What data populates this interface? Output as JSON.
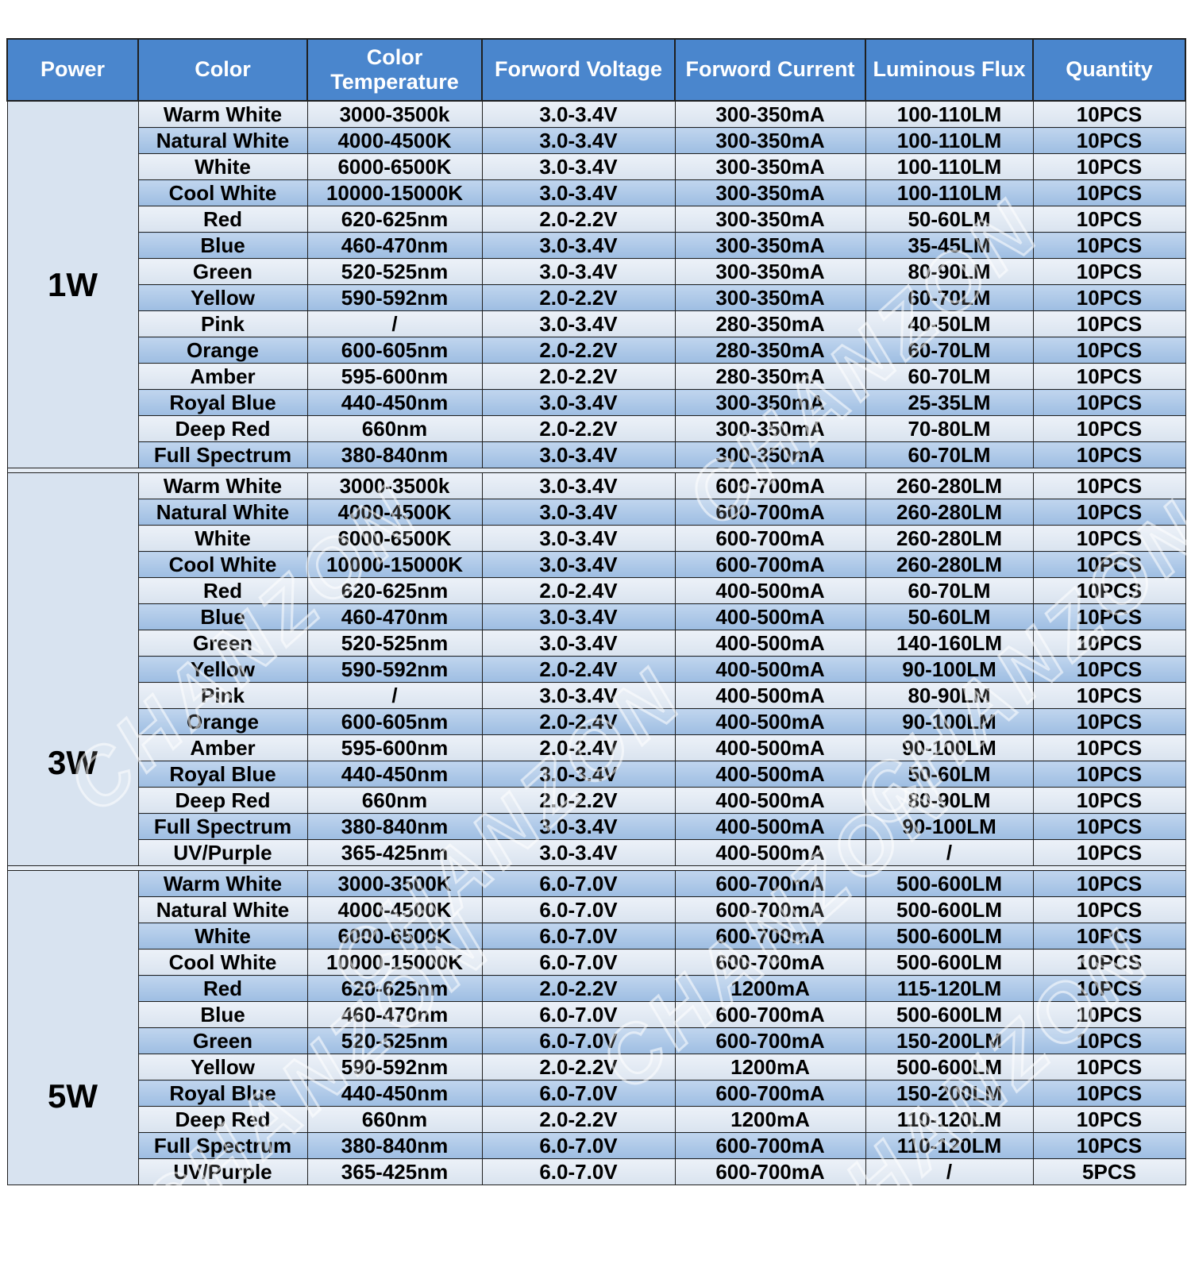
{
  "watermark": {
    "text": "CHANZON"
  },
  "colors": {
    "header_bg": "#4a86cd",
    "header_text": "#ffffff",
    "row_light": "#dce6f2",
    "row_blue": "#a3c2e5",
    "power_bg": "#d8e3f0",
    "border": "#1f1f1f",
    "canvas": "#ffffff"
  },
  "chart_data": {
    "type": "table",
    "columns": [
      "Power",
      "Color",
      "Color Temperature",
      "Forword Voltage",
      "Forword Current",
      "Luminous Flux",
      "Quantity"
    ],
    "sections": [
      {
        "power": "1W",
        "rows": [
          [
            "Warm White",
            "3000-3500k",
            "3.0-3.4V",
            "300-350mA",
            "100-110LM",
            "10PCS"
          ],
          [
            "Natural White",
            "4000-4500K",
            "3.0-3.4V",
            "300-350mA",
            "100-110LM",
            "10PCS"
          ],
          [
            "White",
            "6000-6500K",
            "3.0-3.4V",
            "300-350mA",
            "100-110LM",
            "10PCS"
          ],
          [
            "Cool White",
            "10000-15000K",
            "3.0-3.4V",
            "300-350mA",
            "100-110LM",
            "10PCS"
          ],
          [
            "Red",
            "620-625nm",
            "2.0-2.2V",
            "300-350mA",
            "50-60LM",
            "10PCS"
          ],
          [
            "Blue",
            "460-470nm",
            "3.0-3.4V",
            "300-350mA",
            "35-45LM",
            "10PCS"
          ],
          [
            "Green",
            "520-525nm",
            "3.0-3.4V",
            "300-350mA",
            "80-90LM",
            "10PCS"
          ],
          [
            "Yellow",
            "590-592nm",
            "2.0-2.2V",
            "300-350mA",
            "60-70LM",
            "10PCS"
          ],
          [
            "Pink",
            "/",
            "3.0-3.4V",
            "280-350mA",
            "40-50LM",
            "10PCS"
          ],
          [
            "Orange",
            "600-605nm",
            "2.0-2.2V",
            "280-350mA",
            "60-70LM",
            "10PCS"
          ],
          [
            "Amber",
            "595-600nm",
            "2.0-2.2V",
            "280-350mA",
            "60-70LM",
            "10PCS"
          ],
          [
            "Royal Blue",
            "440-450nm",
            "3.0-3.4V",
            "300-350mA",
            "25-35LM",
            "10PCS"
          ],
          [
            "Deep Red",
            "660nm",
            "2.0-2.2V",
            "300-350mA",
            "70-80LM",
            "10PCS"
          ],
          [
            "Full Spectrum",
            "380-840nm",
            "3.0-3.4V",
            "300-350mA",
            "60-70LM",
            "10PCS"
          ]
        ]
      },
      {
        "power": "3W",
        "rows": [
          [
            "Warm White",
            "3000-3500k",
            "3.0-3.4V",
            "600-700mA",
            "260-280LM",
            "10PCS"
          ],
          [
            "Natural White",
            "4000-4500K",
            "3.0-3.4V",
            "600-700mA",
            "260-280LM",
            "10PCS"
          ],
          [
            "White",
            "6000-6500K",
            "3.0-3.4V",
            "600-700mA",
            "260-280LM",
            "10PCS"
          ],
          [
            "Cool White",
            "10000-15000K",
            "3.0-3.4V",
            "600-700mA",
            "260-280LM",
            "10PCS"
          ],
          [
            "Red",
            "620-625nm",
            "2.0-2.4V",
            "400-500mA",
            "60-70LM",
            "10PCS"
          ],
          [
            "Blue",
            "460-470nm",
            "3.0-3.4V",
            "400-500mA",
            "50-60LM",
            "10PCS"
          ],
          [
            "Green",
            "520-525nm",
            "3.0-3.4V",
            "400-500mA",
            "140-160LM",
            "10PCS"
          ],
          [
            "Yellow",
            "590-592nm",
            "2.0-2.4V",
            "400-500mA",
            "90-100LM",
            "10PCS"
          ],
          [
            "Pink",
            "/",
            "3.0-3.4V",
            "400-500mA",
            "80-90LM",
            "10PCS"
          ],
          [
            "Orange",
            "600-605nm",
            "2.0-2.4V",
            "400-500mA",
            "90-100LM",
            "10PCS"
          ],
          [
            "Amber",
            "595-600nm",
            "2.0-2.4V",
            "400-500mA",
            "90-100LM",
            "10PCS"
          ],
          [
            "Royal Blue",
            "440-450nm",
            "3.0-3.4V",
            "400-500mA",
            "50-60LM",
            "10PCS"
          ],
          [
            "Deep Red",
            "660nm",
            "2.0-2.2V",
            "400-500mA",
            "80-90LM",
            "10PCS"
          ],
          [
            "Full Spectrum",
            "380-840nm",
            "3.0-3.4V",
            "400-500mA",
            "90-100LM",
            "10PCS"
          ],
          [
            "UV/Purple",
            "365-425nm",
            "3.0-3.4V",
            "400-500mA",
            "/",
            "10PCS"
          ]
        ]
      },
      {
        "power": "5W",
        "rows": [
          [
            "Warm White",
            "3000-3500K",
            "6.0-7.0V",
            "600-700mA",
            "500-600LM",
            "10PCS"
          ],
          [
            "Natural White",
            "4000-4500K",
            "6.0-7.0V",
            "600-700mA",
            "500-600LM",
            "10PCS"
          ],
          [
            "White",
            "6000-6500K",
            "6.0-7.0V",
            "600-700mA",
            "500-600LM",
            "10PCS"
          ],
          [
            "Cool White",
            "10000-15000K",
            "6.0-7.0V",
            "600-700mA",
            "500-600LM",
            "10PCS"
          ],
          [
            "Red",
            "620-625nm",
            "2.0-2.2V",
            "1200mA",
            "115-120LM",
            "10PCS"
          ],
          [
            "Blue",
            "460-470nm",
            "6.0-7.0V",
            "600-700mA",
            "500-600LM",
            "10PCS"
          ],
          [
            "Green",
            "520-525nm",
            "6.0-7.0V",
            "600-700mA",
            "150-200LM",
            "10PCS"
          ],
          [
            "Yellow",
            "590-592nm",
            "2.0-2.2V",
            "1200mA",
            "500-600LM",
            "10PCS"
          ],
          [
            "Royal Blue",
            "440-450nm",
            "6.0-7.0V",
            "600-700mA",
            "150-200LM",
            "10PCS"
          ],
          [
            "Deep Red",
            "660nm",
            "2.0-2.2V",
            "1200mA",
            "110-120LM",
            "10PCS"
          ],
          [
            "Full Spectrum",
            "380-840nm",
            "6.0-7.0V",
            "600-700mA",
            "110-120LM",
            "10PCS"
          ],
          [
            "UV/Purple",
            "365-425nm",
            "6.0-7.0V",
            "600-700mA",
            "/",
            "5PCS"
          ]
        ]
      }
    ]
  }
}
